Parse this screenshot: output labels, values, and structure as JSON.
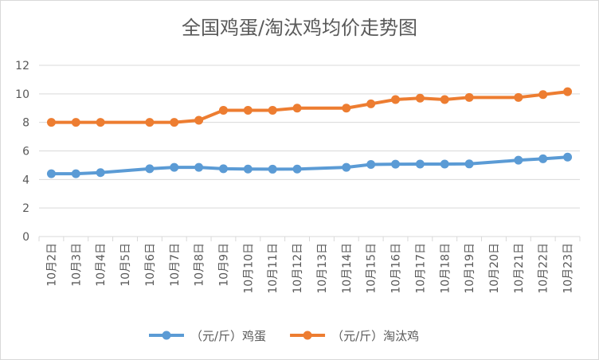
{
  "chart_data": {
    "type": "line",
    "title": "全国鸡蛋/淘汰鸡均价走势图",
    "xlabel": "",
    "ylabel": "",
    "ylim": [
      0,
      12
    ],
    "yticks": [
      0,
      2,
      4,
      6,
      8,
      10,
      12
    ],
    "grid": true,
    "legend_position": "bottom",
    "categories": [
      "10月2日",
      "10月3日",
      "10月4日",
      "10月5日",
      "10月6日",
      "10月7日",
      "10月8日",
      "10月9日",
      "10月10日",
      "10月11日",
      "10月12日",
      "10月13日",
      "10月14日",
      "10月15日",
      "10月16日",
      "10月17日",
      "10月18日",
      "10月19日",
      "10月20日",
      "10月21日",
      "10月22日",
      "10月23日"
    ],
    "x_positions": [
      0,
      1,
      2,
      3,
      4,
      5,
      6,
      7,
      8,
      9,
      10,
      11,
      12,
      13,
      14,
      15,
      16,
      17,
      18,
      19,
      20,
      21
    ],
    "series": [
      {
        "name": "（元/斤）鸡蛋",
        "color": "#5b9bd5",
        "points": [
          [
            0,
            4.4
          ],
          [
            1,
            4.4
          ],
          [
            2,
            4.48
          ],
          [
            4,
            4.75
          ],
          [
            5,
            4.85
          ],
          [
            6,
            4.85
          ],
          [
            7,
            4.75
          ],
          [
            8,
            4.73
          ],
          [
            9,
            4.72
          ],
          [
            10,
            4.73
          ],
          [
            12,
            4.85
          ],
          [
            13,
            5.05
          ],
          [
            14,
            5.07
          ],
          [
            15,
            5.08
          ],
          [
            16,
            5.08
          ],
          [
            17,
            5.09
          ],
          [
            19,
            5.35
          ],
          [
            20,
            5.45
          ],
          [
            21,
            5.57
          ]
        ]
      },
      {
        "name": "（元/斤）淘汰鸡",
        "color": "#ed7d31",
        "points": [
          [
            0,
            8.0
          ],
          [
            1,
            8.0
          ],
          [
            2,
            8.0
          ],
          [
            4,
            8.0
          ],
          [
            5,
            8.0
          ],
          [
            6,
            8.15
          ],
          [
            7,
            8.85
          ],
          [
            8,
            8.85
          ],
          [
            9,
            8.85
          ],
          [
            10,
            9.0
          ],
          [
            12,
            9.0
          ],
          [
            13,
            9.3
          ],
          [
            14,
            9.6
          ],
          [
            15,
            9.7
          ],
          [
            16,
            9.6
          ],
          [
            17,
            9.75
          ],
          [
            19,
            9.75
          ],
          [
            20,
            9.95
          ],
          [
            21,
            10.15
          ]
        ]
      }
    ]
  }
}
